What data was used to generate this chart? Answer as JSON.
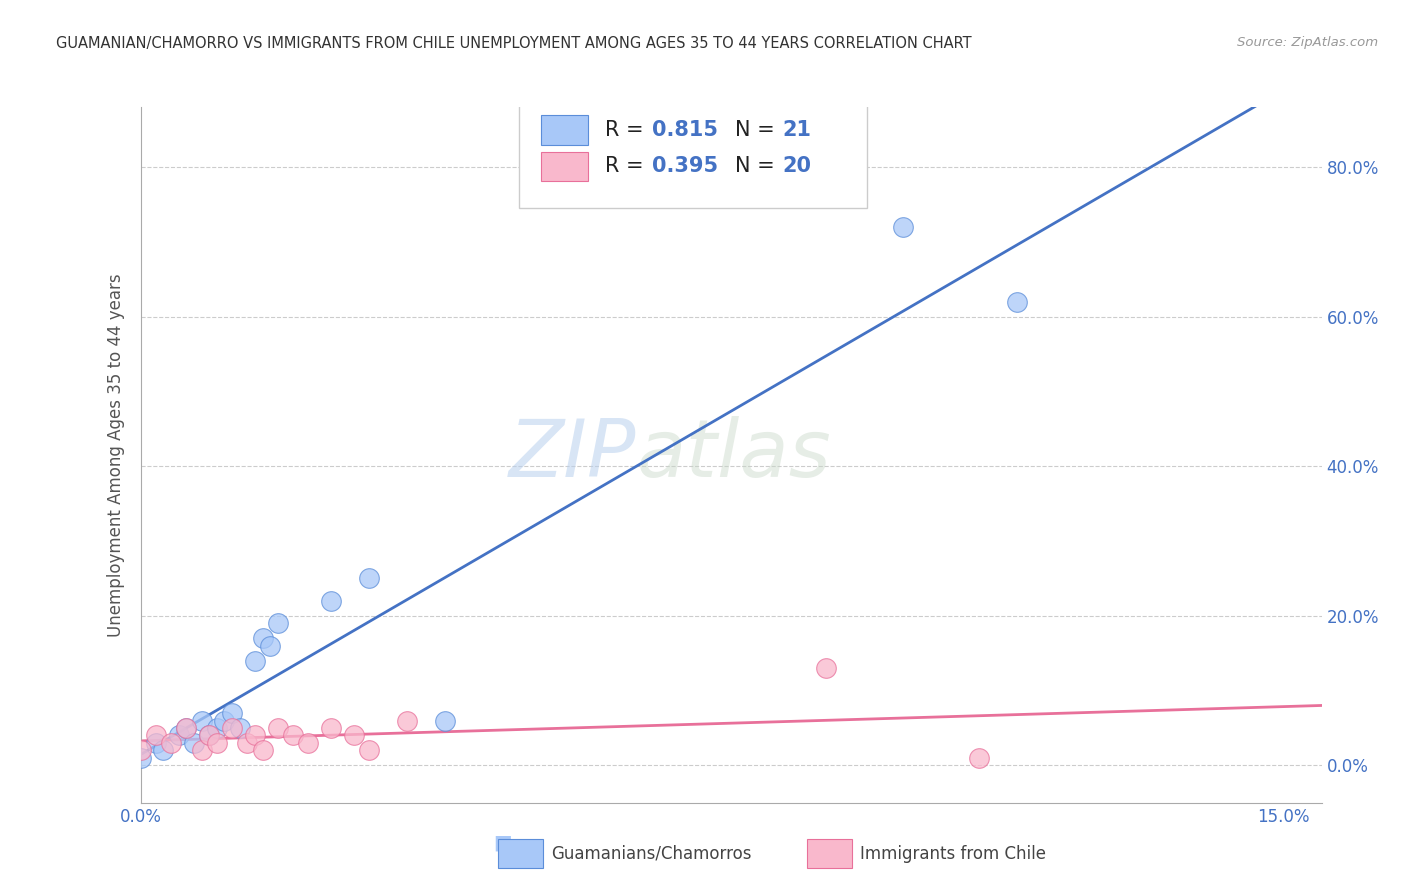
{
  "title": "GUAMANIAN/CHAMORRO VS IMMIGRANTS FROM CHILE UNEMPLOYMENT AMONG AGES 35 TO 44 YEARS CORRELATION CHART",
  "source": "Source: ZipAtlas.com",
  "ylabel_label": "Unemployment Among Ages 35 to 44 years",
  "ytick_labels": [
    "0.0%",
    "20.0%",
    "40.0%",
    "60.0%",
    "80.0%"
  ],
  "ytick_vals": [
    0.0,
    0.2,
    0.4,
    0.6,
    0.8
  ],
  "xtick_labels": [
    "0.0%",
    "15.0%"
  ],
  "xtick_vals": [
    0.0,
    0.15
  ],
  "blue_R": "0.815",
  "blue_N": "21",
  "pink_R": "0.395",
  "pink_N": "20",
  "blue_color": "#A8C8F8",
  "pink_color": "#F9B8CC",
  "blue_edge_color": "#5B8DD9",
  "pink_edge_color": "#E8709A",
  "blue_line_color": "#4472C4",
  "pink_line_color": "#E8709A",
  "legend_label_blue": "Guamanians/Chamorros",
  "legend_label_pink": "Immigrants from Chile",
  "watermark_zip": "ZIP",
  "watermark_atlas": "atlas",
  "blue_scatter_x": [
    0.0,
    0.002,
    0.003,
    0.005,
    0.006,
    0.007,
    0.008,
    0.009,
    0.01,
    0.011,
    0.012,
    0.013,
    0.015,
    0.016,
    0.017,
    0.018,
    0.025,
    0.03,
    0.04,
    0.1,
    0.115
  ],
  "blue_scatter_y": [
    0.01,
    0.03,
    0.02,
    0.04,
    0.05,
    0.03,
    0.06,
    0.04,
    0.05,
    0.06,
    0.07,
    0.05,
    0.14,
    0.17,
    0.16,
    0.19,
    0.22,
    0.25,
    0.06,
    0.72,
    0.62
  ],
  "pink_scatter_x": [
    0.0,
    0.002,
    0.004,
    0.006,
    0.008,
    0.009,
    0.01,
    0.012,
    0.014,
    0.015,
    0.016,
    0.018,
    0.02,
    0.022,
    0.025,
    0.028,
    0.03,
    0.035,
    0.09,
    0.11
  ],
  "pink_scatter_y": [
    0.02,
    0.04,
    0.03,
    0.05,
    0.02,
    0.04,
    0.03,
    0.05,
    0.03,
    0.04,
    0.02,
    0.05,
    0.04,
    0.03,
    0.05,
    0.04,
    0.02,
    0.06,
    0.13,
    0.01
  ],
  "xlim": [
    0.0,
    0.155
  ],
  "ylim": [
    -0.05,
    0.88
  ],
  "background_color": "#FFFFFF",
  "grid_color": "#CCCCCC"
}
